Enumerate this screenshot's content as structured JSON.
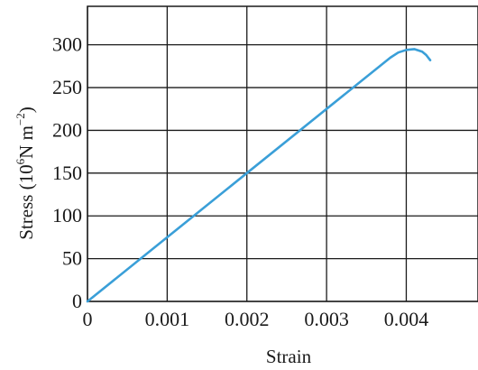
{
  "chart_data": {
    "type": "line",
    "title": "",
    "xlabel": "Strain",
    "ylabel_parts": {
      "base": "Stress (10",
      "exponent": "6",
      "unit": "N m",
      "unit_exponent": "−2",
      "close": ")"
    },
    "xlim": [
      0,
      0.0049
    ],
    "ylim": [
      0,
      345
    ],
    "x_gridlines": [
      0,
      0.001,
      0.002,
      0.003,
      0.004
    ],
    "y_gridlines": [
      0,
      50,
      100,
      150,
      200,
      250,
      300
    ],
    "x_ticks": [
      {
        "value": 0,
        "label": "0"
      },
      {
        "value": 0.001,
        "label": "0.001"
      },
      {
        "value": 0.002,
        "label": "0.002"
      },
      {
        "value": 0.003,
        "label": "0.003"
      },
      {
        "value": 0.004,
        "label": "0.004"
      }
    ],
    "y_ticks": [
      {
        "value": 0,
        "label": "0"
      },
      {
        "value": 50,
        "label": "50"
      },
      {
        "value": 100,
        "label": "100"
      },
      {
        "value": 150,
        "label": "150"
      },
      {
        "value": 200,
        "label": "200"
      },
      {
        "value": 250,
        "label": "250"
      },
      {
        "value": 300,
        "label": "300"
      }
    ],
    "grid": true,
    "legend": "none",
    "series": [
      {
        "color": "#3a9fd8",
        "points": [
          {
            "x": 0,
            "y": 0
          },
          {
            "x": 0.001,
            "y": 75
          },
          {
            "x": 0.002,
            "y": 150
          },
          {
            "x": 0.003,
            "y": 225
          },
          {
            "x": 0.0038,
            "y": 285
          },
          {
            "x": 0.0039,
            "y": 291
          },
          {
            "x": 0.004,
            "y": 294
          },
          {
            "x": 0.0041,
            "y": 295
          },
          {
            "x": 0.0042,
            "y": 292
          },
          {
            "x": 0.00425,
            "y": 288
          },
          {
            "x": 0.0043,
            "y": 282
          }
        ]
      }
    ]
  }
}
